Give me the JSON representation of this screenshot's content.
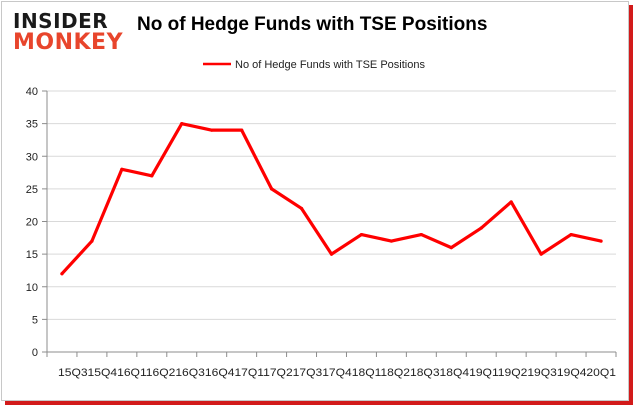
{
  "brand": {
    "line1": "INSIDER",
    "line2": "MONKEY"
  },
  "chart_data": {
    "type": "line",
    "title": "No of Hedge Funds with TSE Positions",
    "xlabel": "",
    "ylabel": "",
    "categories": [
      "15Q3",
      "15Q4",
      "16Q1",
      "16Q2",
      "16Q3",
      "16Q4",
      "17Q1",
      "17Q2",
      "17Q3",
      "17Q4",
      "18Q1",
      "18Q2",
      "18Q3",
      "18Q4",
      "19Q1",
      "19Q2",
      "19Q3",
      "19Q4",
      "20Q1"
    ],
    "x_tick_text": "15Q315Q416Q116Q216Q316Q417Q117Q217Q317Q418Q118Q218Q318Q419Q119Q219Q319Q420Q1",
    "series": [
      {
        "name": "No of Hedge Funds with TSE Positions",
        "color": "#ff0000",
        "values": [
          12,
          17,
          28,
          27,
          35,
          34,
          34,
          25,
          22,
          15,
          18,
          17,
          18,
          16,
          19,
          23,
          15,
          18,
          17
        ]
      }
    ],
    "ylim": [
      0,
      40
    ],
    "yticks": [
      0,
      5,
      10,
      15,
      20,
      25,
      30,
      35,
      40
    ],
    "grid": true,
    "legend": "top-center"
  }
}
